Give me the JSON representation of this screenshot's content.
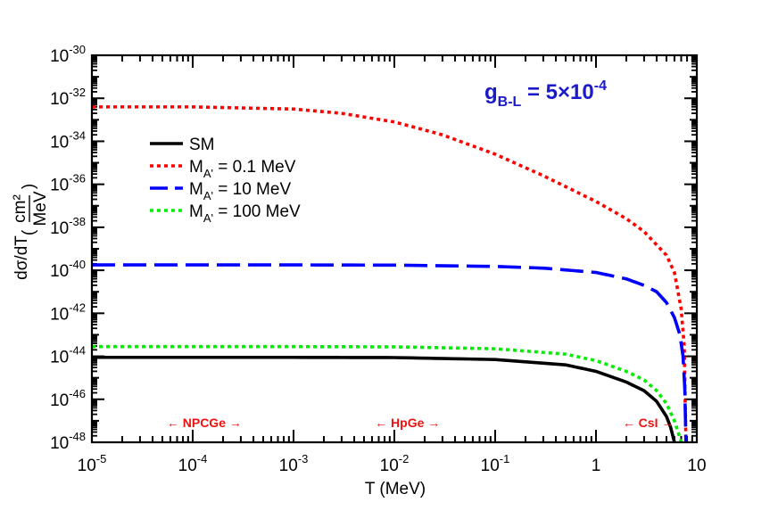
{
  "chart_data": {
    "type": "line",
    "title": "",
    "xlabel": "T (MeV)",
    "ylabel_main": "dσ/dT",
    "ylabel_unit_num": "cm²",
    "ylabel_unit_den": "MeV",
    "xscale": "log",
    "yscale": "log",
    "xlim": [
      1e-05,
      10
    ],
    "ylim": [
      1e-48,
      1e-30
    ],
    "x_ticks": [
      {
        "value": 1e-05,
        "base": "10",
        "exp": "-5"
      },
      {
        "value": 0.0001,
        "base": "10",
        "exp": "-4"
      },
      {
        "value": 0.001,
        "base": "10",
        "exp": "-3"
      },
      {
        "value": 0.01,
        "base": "10",
        "exp": "-2"
      },
      {
        "value": 0.1,
        "base": "10",
        "exp": "-1"
      },
      {
        "value": 1,
        "base": "1",
        "exp": ""
      },
      {
        "value": 10,
        "base": "10",
        "exp": ""
      }
    ],
    "y_ticks": [
      {
        "value": -30,
        "base": "10",
        "exp": "-30"
      },
      {
        "value": -32,
        "base": "10",
        "exp": "-32"
      },
      {
        "value": -34,
        "base": "10",
        "exp": "-34"
      },
      {
        "value": -36,
        "base": "10",
        "exp": "-36"
      },
      {
        "value": -38,
        "base": "10",
        "exp": "-38"
      },
      {
        "value": -40,
        "base": "10",
        "exp": "-40"
      },
      {
        "value": -42,
        "base": "10",
        "exp": "-42"
      },
      {
        "value": -44,
        "base": "10",
        "exp": "-44"
      },
      {
        "value": -46,
        "base": "10",
        "exp": "-46"
      },
      {
        "value": -48,
        "base": "10",
        "exp": "-48"
      }
    ],
    "legend_position": "upper-left",
    "series": [
      {
        "name": "SM",
        "label_main": "SM",
        "label_sub": "",
        "label_rest": "",
        "color": "#000000",
        "style": "solid",
        "x": [
          1e-05,
          0.001,
          0.01,
          0.1,
          0.5,
          1,
          2,
          3,
          4,
          5,
          5.5,
          6,
          6.2
        ],
        "log10_y": [
          -44.05,
          -44.05,
          -44.06,
          -44.15,
          -44.4,
          -44.7,
          -45.2,
          -45.6,
          -46.1,
          -46.8,
          -47.3,
          -48.0,
          -48.3
        ]
      },
      {
        "name": "MA' = 0.1 MeV",
        "label_main": "M",
        "label_sub": "A'",
        "label_rest": " = 0.1 MeV",
        "color": "#ff0000",
        "style": "dotted",
        "x": [
          1e-05,
          0.0001,
          0.001,
          0.003,
          0.01,
          0.03,
          0.1,
          0.3,
          1,
          2,
          3,
          5,
          6,
          7,
          7.5,
          7.8
        ],
        "log10_y": [
          -32.4,
          -32.4,
          -32.5,
          -32.7,
          -33.1,
          -33.7,
          -34.6,
          -35.6,
          -36.8,
          -37.6,
          -38.2,
          -39.3,
          -40.1,
          -41.8,
          -43.5,
          -48.0
        ]
      },
      {
        "name": "MA' = 10 MeV",
        "label_main": "M",
        "label_sub": "A'",
        "label_rest": " = 10 MeV",
        "color": "#0000ff",
        "style": "dashed",
        "x": [
          1e-05,
          0.001,
          0.01,
          0.1,
          0.3,
          1,
          2,
          3,
          4,
          5,
          6,
          6.8,
          7.3,
          7.6,
          7.8
        ],
        "log10_y": [
          -39.75,
          -39.75,
          -39.76,
          -39.82,
          -39.9,
          -40.1,
          -40.4,
          -40.7,
          -41.0,
          -41.5,
          -42.2,
          -43.0,
          -44.0,
          -45.5,
          -48.0
        ]
      },
      {
        "name": "MA' = 100 MeV",
        "label_main": "M",
        "label_sub": "A'",
        "label_rest": " = 100 MeV",
        "color": "#00ee00",
        "style": "dotted",
        "x": [
          1e-05,
          0.001,
          0.01,
          0.1,
          0.5,
          1,
          2,
          3,
          4,
          5,
          6,
          6.5,
          7
        ],
        "log10_y": [
          -43.55,
          -43.55,
          -43.56,
          -43.65,
          -43.9,
          -44.2,
          -44.7,
          -45.1,
          -45.6,
          -46.2,
          -47.0,
          -47.5,
          -48.0
        ]
      }
    ],
    "annotations": {
      "coupling_main": "g",
      "coupling_sub": "B-L",
      "coupling_rest": " = 5×10",
      "coupling_exp": "-4",
      "coupling_color": "#1a1acc",
      "region_color": "#ee1111",
      "regions": [
        {
          "name": "NPCGe",
          "text": "← NPCGe →",
          "x": 0.00013
        },
        {
          "name": "HpGe",
          "text": "← HpGe →",
          "x": 0.0135
        },
        {
          "name": "CsI",
          "text": "← CsI →",
          "x": 3.3
        }
      ]
    }
  }
}
